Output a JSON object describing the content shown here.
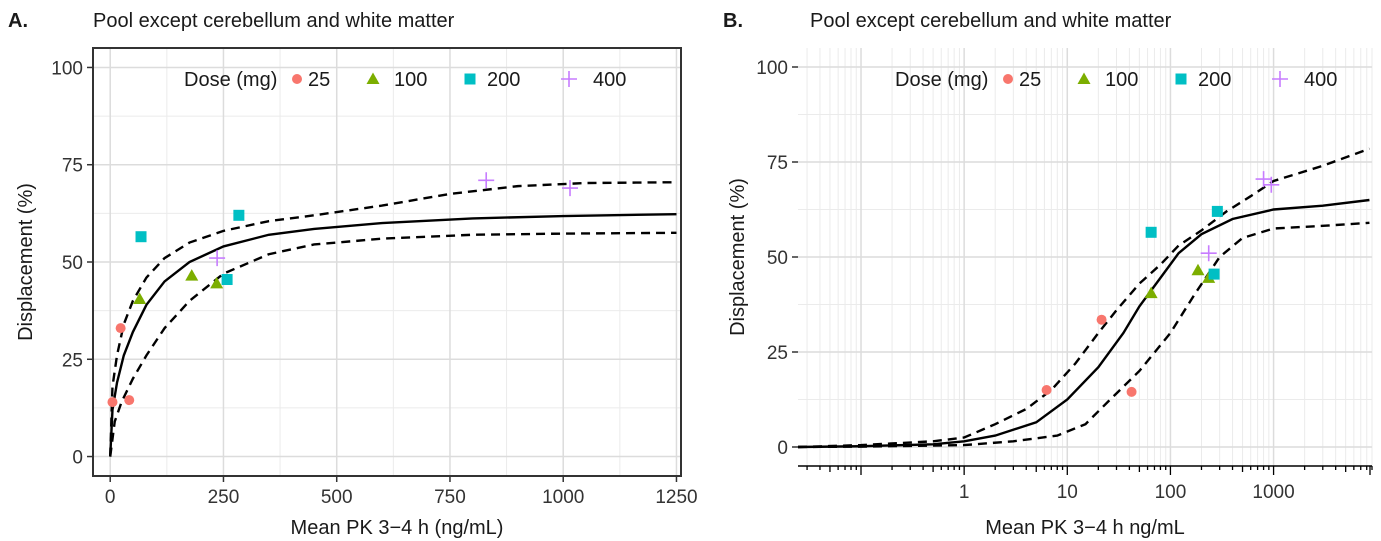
{
  "chart_data": [
    {
      "panel": "A.",
      "type": "scatter",
      "title": "Pool except cerebellum and white matter",
      "xlabel": "Mean PK 3−4 h (ng/mL)",
      "ylabel": "Displacement (%)",
      "xscale": "linear",
      "xlim": [
        -38,
        1260
      ],
      "ylim": [
        -5,
        105
      ],
      "xticks": [
        0,
        250,
        500,
        750,
        1000,
        1250
      ],
      "xtick_labels": [
        "0",
        "250",
        "500",
        "750",
        "1000",
        "1250"
      ],
      "yticks": [
        0,
        25,
        50,
        75,
        100
      ],
      "ytick_labels": [
        "0",
        "25",
        "50",
        "75",
        "100"
      ],
      "grid": true,
      "legend": {
        "title": "Dose (mg)",
        "placement": "top-right",
        "entries": [
          {
            "label": "25",
            "color": "#F8766D",
            "shape": "circle"
          },
          {
            "label": "100",
            "color": "#7CAE00",
            "shape": "triangle"
          },
          {
            "label": "200",
            "color": "#00BFC4",
            "shape": "square"
          },
          {
            "label": "400",
            "color": "#C77CFF",
            "shape": "plus"
          }
        ]
      },
      "series": [
        {
          "name": "25",
          "points": [
            [
              5,
              14
            ],
            [
              42,
              14.5
            ],
            [
              23,
              33
            ]
          ]
        },
        {
          "name": "100",
          "points": [
            [
              65,
              40.5
            ],
            [
              180,
              46.5
            ],
            [
              235,
              44.5
            ]
          ]
        },
        {
          "name": "200",
          "points": [
            [
              68,
              56.5
            ],
            [
              258,
              45.5
            ],
            [
              284,
              62
            ]
          ]
        },
        {
          "name": "400",
          "points": [
            [
              236,
              51
            ],
            [
              830,
              71
            ],
            [
              1015,
              69
            ]
          ]
        }
      ],
      "lines": [
        {
          "style": "solid",
          "points": [
            [
              0,
              0
            ],
            [
              5,
              12
            ],
            [
              15,
              19
            ],
            [
              30,
              26
            ],
            [
              50,
              32
            ],
            [
              80,
              39
            ],
            [
              120,
              45
            ],
            [
              175,
              50
            ],
            [
              250,
              54
            ],
            [
              350,
              57
            ],
            [
              450,
              58.5
            ],
            [
              600,
              60
            ],
            [
              800,
              61.2
            ],
            [
              1000,
              61.8
            ],
            [
              1250,
              62.3
            ]
          ]
        },
        {
          "style": "dashed",
          "points": [
            [
              0,
              0
            ],
            [
              5,
              18
            ],
            [
              15,
              26
            ],
            [
              30,
              34
            ],
            [
              50,
              40
            ],
            [
              80,
              46
            ],
            [
              120,
              51
            ],
            [
              175,
              55
            ],
            [
              250,
              58
            ],
            [
              350,
              60.5
            ],
            [
              450,
              62
            ],
            [
              600,
              64.5
            ],
            [
              750,
              67.5
            ],
            [
              900,
              69.5
            ],
            [
              1050,
              70.3
            ],
            [
              1250,
              70.5
            ]
          ]
        },
        {
          "style": "dashed",
          "points": [
            [
              0,
              0
            ],
            [
              10,
              9
            ],
            [
              25,
              14
            ],
            [
              50,
              20
            ],
            [
              80,
              26
            ],
            [
              120,
              33
            ],
            [
              175,
              40
            ],
            [
              250,
              47
            ],
            [
              350,
              52
            ],
            [
              450,
              54.5
            ],
            [
              600,
              56
            ],
            [
              800,
              57
            ],
            [
              1000,
              57.3
            ],
            [
              1250,
              57.5
            ]
          ]
        }
      ]
    },
    {
      "panel": "B.",
      "type": "scatter",
      "title": "Pool except cerebellum and white matter",
      "xlabel": "Mean PK 3−4 h ng/mL",
      "ylabel": "Displacement (%)",
      "xscale": "log",
      "xlim": [
        0.0245,
        9000
      ],
      "ylim": [
        -5,
        105
      ],
      "xticks": [
        1,
        10,
        100,
        1000
      ],
      "xtick_labels": [
        "1",
        "10",
        "100",
        "1000"
      ],
      "yticks": [
        0,
        25,
        50,
        75,
        100
      ],
      "ytick_labels": [
        "0",
        "25",
        "50",
        "75",
        "100"
      ],
      "grid": true,
      "legend": {
        "title": "Dose (mg)",
        "placement": "top-right",
        "entries": [
          {
            "label": "25",
            "color": "#F8766D",
            "shape": "circle"
          },
          {
            "label": "100",
            "color": "#7CAE00",
            "shape": "triangle"
          },
          {
            "label": "200",
            "color": "#00BFC4",
            "shape": "square"
          },
          {
            "label": "400",
            "color": "#C77CFF",
            "shape": "plus"
          }
        ]
      },
      "series": [
        {
          "name": "25",
          "points": [
            [
              6.3,
              15
            ],
            [
              21.5,
              33.5
            ],
            [
              42,
              14.5
            ]
          ]
        },
        {
          "name": "100",
          "points": [
            [
              65,
              40.5
            ],
            [
              185,
              46.5
            ],
            [
              235,
              44.5
            ]
          ]
        },
        {
          "name": "200",
          "points": [
            [
              65,
              56.5
            ],
            [
              265,
              45.5
            ],
            [
              285,
              62
            ]
          ]
        },
        {
          "name": "400",
          "points": [
            [
              235,
              51
            ],
            [
              800,
              70.5
            ],
            [
              950,
              69
            ]
          ]
        }
      ],
      "lines": [
        {
          "style": "solid",
          "points": [
            [
              0.0245,
              0
            ],
            [
              0.1,
              0.2
            ],
            [
              0.5,
              0.7
            ],
            [
              1,
              1.5
            ],
            [
              2,
              3
            ],
            [
              5,
              6.5
            ],
            [
              10,
              12.5
            ],
            [
              20,
              21
            ],
            [
              35,
              30
            ],
            [
              50,
              37
            ],
            [
              80,
              44.5
            ],
            [
              120,
              51
            ],
            [
              200,
              56
            ],
            [
              400,
              60
            ],
            [
              1000,
              62.5
            ],
            [
              3000,
              63.5
            ],
            [
              8500,
              65
            ]
          ]
        },
        {
          "style": "dashed",
          "points": [
            [
              0.0245,
              0
            ],
            [
              0.1,
              0.5
            ],
            [
              0.5,
              1.5
            ],
            [
              1,
              2.5
            ],
            [
              2,
              6
            ],
            [
              4,
              10
            ],
            [
              7,
              15
            ],
            [
              12,
              22
            ],
            [
              20,
              30
            ],
            [
              30,
              36
            ],
            [
              50,
              43
            ],
            [
              80,
              48
            ],
            [
              120,
              53
            ],
            [
              200,
              57
            ],
            [
              350,
              62
            ],
            [
              600,
              66
            ],
            [
              1000,
              70
            ],
            [
              3000,
              74
            ],
            [
              8500,
              78.5
            ]
          ]
        },
        {
          "style": "dashed",
          "points": [
            [
              0.0245,
              0
            ],
            [
              0.1,
              0.1
            ],
            [
              1,
              0.5
            ],
            [
              3,
              1.5
            ],
            [
              8,
              3
            ],
            [
              15,
              6
            ],
            [
              25,
              12
            ],
            [
              50,
              20
            ],
            [
              100,
              30
            ],
            [
              170,
              40
            ],
            [
              300,
              50
            ],
            [
              500,
              55
            ],
            [
              1000,
              57.5
            ],
            [
              3000,
              58.2
            ],
            [
              8500,
              59
            ]
          ]
        }
      ]
    }
  ]
}
